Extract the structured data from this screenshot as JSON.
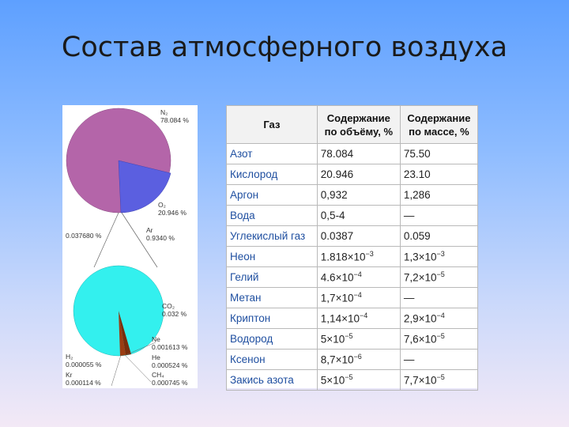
{
  "title": "Состав атмосферного воздуха",
  "figure": {
    "pie1_labels": {
      "n2_formula": "N₂",
      "n2_value": "78.084 %",
      "o2_formula": "O₂",
      "o2_value": "20.946 %",
      "ar_formula": "Ar",
      "ar_value": "0.9340 %",
      "other_value": "0.037680 %"
    },
    "pie2_labels": {
      "co2_formula": "CO₂",
      "co2_value": "0.032 %",
      "ne_formula": "Ne",
      "ne_value": "0.001613 %",
      "he_formula": "He",
      "he_value": "0.000524 %",
      "ch4_formula": "CH₄",
      "ch4_value": "0.000745 %",
      "h2_formula": "H₂",
      "h2_value": "0.000055 %",
      "kr_formula": "Kr",
      "kr_value": "0.000114 %"
    },
    "colors": {
      "n2": "#b465a9",
      "o2": "#5b5fe0",
      "co2_pie": "#33f0ee",
      "minor": "#9b3d13"
    }
  },
  "table": {
    "headers": {
      "gas": "Газ",
      "by_volume": [
        "Содержание",
        "по объёму, %"
      ],
      "by_mass": [
        "Содержание",
        "по массе, %"
      ]
    },
    "rows": [
      {
        "gas": "Азот",
        "volume": "78.084",
        "mass": "75.50"
      },
      {
        "gas": "Кислород",
        "volume": "20.946",
        "mass": "23.10"
      },
      {
        "gas": "Аргон",
        "volume": "0,932",
        "mass": "1,286"
      },
      {
        "gas": "Вода",
        "volume": "0,5-4",
        "mass": "—"
      },
      {
        "gas": "Углекислый газ",
        "volume": "0.0387",
        "mass": "0.059"
      },
      {
        "gas": "Неон",
        "volume": "1.818×10",
        "volume_exp": "−3",
        "mass": "1,3×10",
        "mass_exp": "−3"
      },
      {
        "gas": "Гелий",
        "volume": "4.6×10",
        "volume_exp": "−4",
        "mass": "7,2×10",
        "mass_exp": "−5"
      },
      {
        "gas": "Метан",
        "volume": "1,7×10",
        "volume_exp": "−4",
        "mass": "—"
      },
      {
        "gas": "Криптон",
        "volume": "1,14×10",
        "volume_exp": "−4",
        "mass": "2,9×10",
        "mass_exp": "−4"
      },
      {
        "gas": "Водород",
        "volume": "5×10",
        "volume_exp": "−5",
        "mass": "7,6×10",
        "mass_exp": "−5"
      },
      {
        "gas": "Ксенон",
        "volume": "8,7×10",
        "volume_exp": "−6",
        "mass": "—"
      },
      {
        "gas": "Закись азота",
        "volume": "5×10",
        "volume_exp": "−5",
        "mass": "7,7×10",
        "mass_exp": "−5"
      }
    ]
  }
}
